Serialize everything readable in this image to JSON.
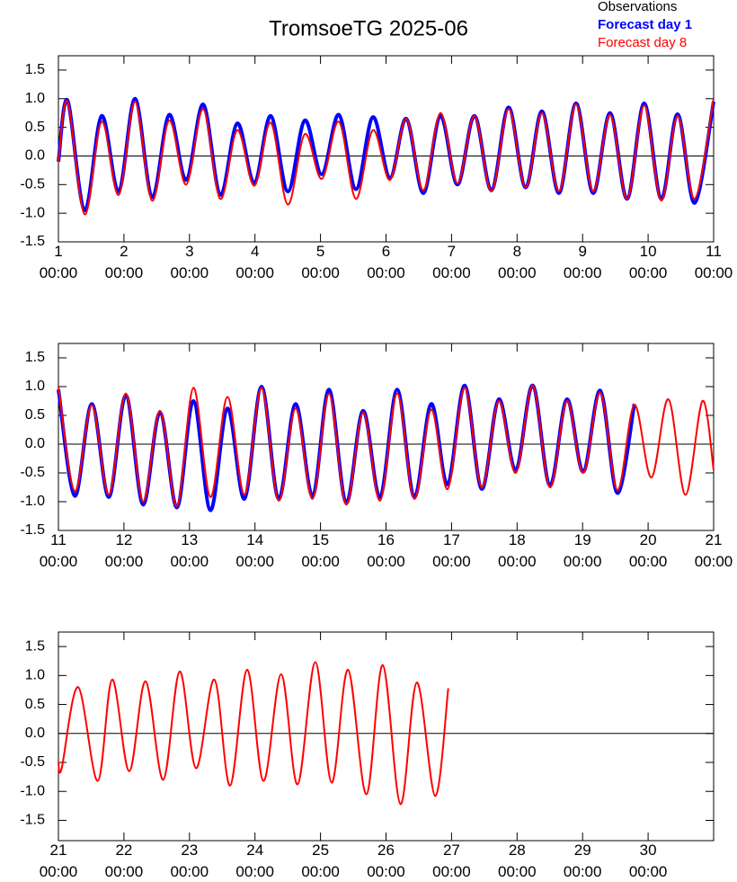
{
  "title": "TromsoeTG 2025-06",
  "legend_position": "top-right",
  "legend": [
    {
      "name": "Observations",
      "color": "#000000",
      "bold": false,
      "line_width": 2
    },
    {
      "name": "Forecast day 1",
      "color": "#0000ff",
      "bold": true,
      "line_width": 4
    },
    {
      "name": "Forecast day 8",
      "color": "#ff0000",
      "bold": false,
      "line_width": 2
    }
  ],
  "chart_data": [
    {
      "type": "line",
      "xlim": [
        1,
        11
      ],
      "ylim": [
        -1.5,
        1.75
      ],
      "reference_line": 0,
      "xticks": [
        {
          "value": 1,
          "label": "1\n00:00"
        },
        {
          "value": 2,
          "label": "2\n00:00"
        },
        {
          "value": 3,
          "label": "3\n00:00"
        },
        {
          "value": 4,
          "label": "4\n00:00"
        },
        {
          "value": 5,
          "label": "5\n00:00"
        },
        {
          "value": 6,
          "label": "6\n00:00"
        },
        {
          "value": 7,
          "label": "7\n00:00"
        },
        {
          "value": 8,
          "label": "8\n00:00"
        },
        {
          "value": 9,
          "label": "9\n00:00"
        },
        {
          "value": 10,
          "label": "10\n00:00"
        },
        {
          "value": 11,
          "label": "11\n00:00"
        }
      ],
      "yticks": [
        1.5,
        {
          "value": 1,
          "label": "1.0"
        },
        0.5,
        {
          "value": 0,
          "label": "0.0"
        },
        -0.5,
        {
          "value": -1,
          "label": "-1.0"
        },
        -1.5
      ],
      "x": [
        1,
        1.14,
        1.4,
        1.66,
        1.92,
        2.17,
        2.43,
        2.69,
        2.95,
        3.21,
        3.47,
        3.73,
        3.99,
        4.24,
        4.5,
        4.76,
        5.02,
        5.28,
        5.54,
        5.8,
        6.06,
        6.31,
        6.57,
        6.83,
        7.09,
        7.35,
        7.61,
        7.87,
        8.13,
        8.38,
        8.64,
        8.9,
        9.16,
        9.42,
        9.68,
        9.94,
        10.2,
        10.45,
        10.71,
        11
      ],
      "series": [
        {
          "values": [
            null,
            null,
            null,
            null,
            null,
            null,
            null,
            null,
            null,
            null,
            null,
            null,
            null,
            null,
            null,
            null,
            null,
            null,
            null,
            null,
            null,
            null,
            null,
            null,
            null,
            null,
            null,
            null,
            null,
            null,
            null,
            null,
            null,
            null,
            null,
            null,
            null,
            null,
            null,
            null
          ]
        },
        {
          "values": [
            -0.1,
            0.97,
            -0.95,
            0.7,
            -0.62,
            1.0,
            -0.72,
            0.72,
            -0.42,
            0.9,
            -0.68,
            0.57,
            -0.47,
            0.7,
            -0.62,
            0.62,
            -0.32,
            0.72,
            -0.58,
            0.68,
            -0.38,
            0.65,
            -0.65,
            0.7,
            -0.5,
            0.7,
            -0.6,
            0.85,
            -0.55,
            0.78,
            -0.65,
            0.92,
            -0.65,
            0.75,
            -0.75,
            0.92,
            -0.75,
            0.73,
            -0.82,
            0.95
          ]
        },
        {
          "values": [
            -0.1,
            0.95,
            -1.02,
            0.6,
            -0.68,
            0.95,
            -0.78,
            0.62,
            -0.5,
            0.82,
            -0.75,
            0.45,
            -0.52,
            0.58,
            -0.85,
            0.38,
            -0.4,
            0.6,
            -0.75,
            0.45,
            -0.42,
            0.65,
            -0.6,
            0.75,
            -0.48,
            0.7,
            -0.62,
            0.82,
            -0.55,
            0.75,
            -0.62,
            0.9,
            -0.62,
            0.72,
            -0.75,
            0.88,
            -0.78,
            0.7,
            -0.75,
            1.0
          ]
        }
      ]
    },
    {
      "type": "line",
      "xlim": [
        11,
        21
      ],
      "ylim": [
        -1.5,
        1.75
      ],
      "reference_line": 0,
      "xticks": [
        {
          "value": 11,
          "label": "11\n00:00"
        },
        {
          "value": 12,
          "label": "12\n00:00"
        },
        {
          "value": 13,
          "label": "13\n00:00"
        },
        {
          "value": 14,
          "label": "14\n00:00"
        },
        {
          "value": 15,
          "label": "15\n00:00"
        },
        {
          "value": 16,
          "label": "16\n00:00"
        },
        {
          "value": 17,
          "label": "17\n00:00"
        },
        {
          "value": 18,
          "label": "18\n00:00"
        },
        {
          "value": 19,
          "label": "19\n00:00"
        },
        {
          "value": 20,
          "label": "20\n00:00"
        },
        {
          "value": 21,
          "label": "21\n00:00"
        }
      ],
      "yticks": [
        1.5,
        {
          "value": 1,
          "label": "1.0"
        },
        0.5,
        {
          "value": 0,
          "label": "0.0"
        },
        -0.5,
        {
          "value": -1,
          "label": "-1.0"
        },
        -1.5
      ],
      "x": [
        11,
        11.25,
        11.51,
        11.77,
        12.03,
        12.29,
        12.55,
        12.81,
        13.06,
        13.32,
        13.58,
        13.84,
        14.1,
        14.36,
        14.62,
        14.88,
        15.13,
        15.39,
        15.65,
        15.91,
        16.17,
        16.43,
        16.69,
        16.94,
        17.2,
        17.46,
        17.72,
        17.98,
        18.24,
        18.5,
        18.76,
        19.01,
        19.27,
        19.53,
        19.79,
        20.05,
        20.31,
        20.57,
        20.83,
        21
      ],
      "series": [
        {
          "values": [
            null,
            null,
            null,
            null,
            null,
            null,
            null,
            null,
            null,
            null,
            null,
            null,
            null,
            null,
            null,
            null,
            null,
            null,
            null,
            null,
            null,
            null,
            null,
            null,
            null,
            null,
            null,
            null,
            null,
            null,
            null,
            null,
            null,
            null,
            null,
            null,
            null,
            null,
            null,
            null
          ]
        },
        {
          "values": [
            0.95,
            -0.9,
            0.7,
            -0.92,
            0.85,
            -1.05,
            0.55,
            -1.1,
            0.75,
            -1.15,
            0.62,
            -0.95,
            1.0,
            -0.95,
            0.7,
            -0.9,
            0.95,
            -1.02,
            0.58,
            -0.92,
            0.95,
            -0.92,
            0.7,
            -0.7,
            1.02,
            -0.78,
            0.78,
            -0.45,
            1.02,
            -0.72,
            0.78,
            -0.48,
            0.93,
            -0.85,
            0.7,
            null,
            null,
            null,
            null,
            null
          ]
        },
        {
          "values": [
            1.0,
            -0.82,
            0.68,
            -0.88,
            0.88,
            -1.0,
            0.58,
            -1.08,
            0.98,
            -0.92,
            0.82,
            -0.88,
            0.98,
            -0.98,
            0.62,
            -0.95,
            0.88,
            -1.05,
            0.55,
            -0.98,
            0.88,
            -0.95,
            0.6,
            -0.78,
            0.98,
            -0.75,
            0.75,
            -0.5,
            1.02,
            -0.75,
            0.75,
            -0.5,
            0.9,
            -0.8,
            0.68,
            -0.58,
            0.78,
            -0.88,
            0.75,
            -0.45
          ]
        }
      ]
    },
    {
      "type": "line",
      "xlim": [
        21,
        31
      ],
      "ylim": [
        -1.85,
        1.75
      ],
      "reference_line": 0,
      "xticks": [
        {
          "value": 21,
          "label": "21\n00:00"
        },
        {
          "value": 22,
          "label": "22\n00:00"
        },
        {
          "value": 23,
          "label": "23\n00:00"
        },
        {
          "value": 24,
          "label": "24\n00:00"
        },
        {
          "value": 25,
          "label": "25\n00:00"
        },
        {
          "value": 26,
          "label": "26\n00:00"
        },
        {
          "value": 27,
          "label": "27\n00:00"
        },
        {
          "value": 28,
          "label": "28\n00:00"
        },
        {
          "value": 29,
          "label": "29\n00:00"
        },
        {
          "value": 30,
          "label": "30\n00:00"
        }
      ],
      "yticks": [
        1.5,
        {
          "value": 1,
          "label": "1.0"
        },
        0.5,
        {
          "value": 0,
          "label": "0.0"
        },
        -0.5,
        {
          "value": -1,
          "label": "-1.0"
        },
        -1.5
      ],
      "x": [
        21,
        21.05,
        21.3,
        21.6,
        21.82,
        22.08,
        22.33,
        22.6,
        22.85,
        23.1,
        23.38,
        23.62,
        23.88,
        24.13,
        24.4,
        24.65,
        24.92,
        25.17,
        25.42,
        25.7,
        25.95,
        26.22,
        26.47,
        26.75,
        26.95
      ],
      "series": [
        {
          "values": [
            null,
            null,
            null,
            null,
            null,
            null,
            null,
            null,
            null,
            null,
            null,
            null,
            null,
            null,
            null,
            null,
            null,
            null,
            null,
            null,
            null,
            null,
            null,
            null,
            null
          ]
        },
        {
          "values": [
            null,
            null,
            null,
            null,
            null,
            null,
            null,
            null,
            null,
            null,
            null,
            null,
            null,
            null,
            null,
            null,
            null,
            null,
            null,
            null,
            null,
            null,
            null,
            null,
            null
          ]
        },
        {
          "values": [
            -0.5,
            -0.6,
            0.8,
            -0.82,
            0.93,
            -0.65,
            0.9,
            -0.8,
            1.07,
            -0.6,
            0.93,
            -0.9,
            1.1,
            -0.82,
            1.02,
            -0.88,
            1.23,
            -0.85,
            1.1,
            -1.05,
            1.18,
            -1.22,
            0.88,
            -1.08,
            0.78
          ]
        }
      ]
    }
  ]
}
